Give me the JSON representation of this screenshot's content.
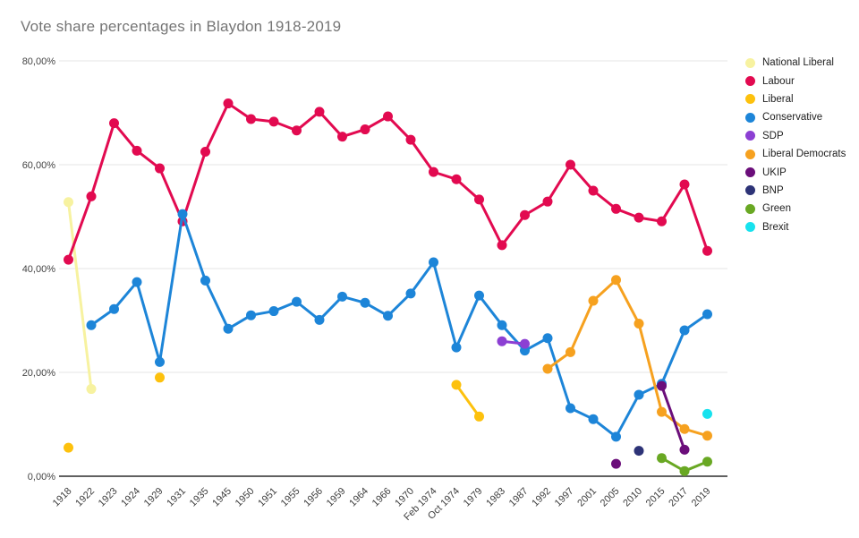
{
  "chart_data": {
    "type": "line",
    "title": "Vote share percentages in Blaydon 1918-2019",
    "legend_position": "right",
    "grid": true,
    "y_axis": {
      "range": [
        0,
        80
      ],
      "ticks": [
        {
          "value": 0,
          "label": "0,00%"
        },
        {
          "value": 20,
          "label": "20,00%"
        },
        {
          "value": 40,
          "label": "40,00%"
        },
        {
          "value": 60,
          "label": "60,00%"
        },
        {
          "value": 80,
          "label": "80,00%"
        }
      ]
    },
    "categories": [
      "1918",
      "1922",
      "1923",
      "1924",
      "1929",
      "1931",
      "1935",
      "1945",
      "1950",
      "1951",
      "1955",
      "1956",
      "1959",
      "1964",
      "1966",
      "1970",
      "Feb 1974",
      "Oct 1974",
      "1979",
      "1983",
      "1987",
      "1992",
      "1997",
      "2001",
      "2005",
      "2010",
      "2015",
      "2017",
      "2019"
    ],
    "series": [
      {
        "id": "national-liberal",
        "name": "National Liberal",
        "color": "#F7F2A0",
        "values": [
          52.8,
          16.8,
          null,
          null,
          null,
          null,
          null,
          null,
          null,
          null,
          null,
          null,
          null,
          null,
          null,
          null,
          null,
          null,
          null,
          null,
          null,
          null,
          null,
          null,
          null,
          null,
          null,
          null,
          null
        ]
      },
      {
        "id": "labour",
        "name": "Labour",
        "color": "#E20A50",
        "values": [
          41.7,
          53.9,
          68.0,
          62.7,
          59.3,
          49.1,
          62.5,
          71.8,
          68.8,
          68.3,
          66.6,
          70.2,
          65.4,
          66.8,
          69.3,
          64.8,
          58.6,
          57.2,
          53.3,
          44.5,
          50.3,
          52.9,
          60.0,
          55.0,
          51.5,
          49.8,
          49.1,
          56.2,
          43.4
        ]
      },
      {
        "id": "liberal",
        "name": "Liberal",
        "color": "#FDC10D",
        "values": [
          5.5,
          null,
          null,
          null,
          19.0,
          null,
          null,
          null,
          null,
          null,
          null,
          null,
          null,
          null,
          null,
          null,
          null,
          17.6,
          11.5,
          null,
          null,
          null,
          null,
          null,
          null,
          null,
          null,
          null,
          null
        ]
      },
      {
        "id": "conservative",
        "name": "Conservative",
        "color": "#1D85D8",
        "values": [
          null,
          29.1,
          32.2,
          37.4,
          22.0,
          50.5,
          37.7,
          28.4,
          31.0,
          31.8,
          33.6,
          30.1,
          34.6,
          33.4,
          30.9,
          35.2,
          41.2,
          24.8,
          34.8,
          29.1,
          24.2,
          26.6,
          13.1,
          11.0,
          7.6,
          15.7,
          17.8,
          28.1,
          31.2
        ]
      },
      {
        "id": "sdp",
        "name": "SDP",
        "color": "#8C3FD3",
        "values": [
          null,
          null,
          null,
          null,
          null,
          null,
          null,
          null,
          null,
          null,
          null,
          null,
          null,
          null,
          null,
          null,
          null,
          null,
          null,
          26.0,
          25.5,
          null,
          null,
          null,
          null,
          null,
          null,
          null,
          null
        ]
      },
      {
        "id": "liberal-democrats",
        "name": "Liberal Democrats",
        "color": "#F6A11F",
        "values": [
          null,
          null,
          null,
          null,
          null,
          null,
          null,
          null,
          null,
          null,
          null,
          null,
          null,
          null,
          null,
          null,
          null,
          null,
          null,
          null,
          null,
          20.7,
          23.9,
          33.8,
          37.8,
          29.4,
          12.4,
          9.1,
          7.8
        ]
      },
      {
        "id": "ukip",
        "name": "UKIP",
        "color": "#6B0E7A",
        "values": [
          null,
          null,
          null,
          null,
          null,
          null,
          null,
          null,
          null,
          null,
          null,
          null,
          null,
          null,
          null,
          null,
          null,
          null,
          null,
          null,
          null,
          null,
          null,
          null,
          2.4,
          null,
          17.4,
          5.1,
          null
        ]
      },
      {
        "id": "bnp",
        "name": "BNP",
        "color": "#2D3377",
        "values": [
          null,
          null,
          null,
          null,
          null,
          null,
          null,
          null,
          null,
          null,
          null,
          null,
          null,
          null,
          null,
          null,
          null,
          null,
          null,
          null,
          null,
          null,
          null,
          null,
          null,
          4.9,
          null,
          null,
          null
        ]
      },
      {
        "id": "green",
        "name": "Green",
        "color": "#69A823",
        "values": [
          null,
          null,
          null,
          null,
          null,
          null,
          null,
          null,
          null,
          null,
          null,
          null,
          null,
          null,
          null,
          null,
          null,
          null,
          null,
          null,
          null,
          null,
          null,
          null,
          null,
          null,
          3.5,
          1.0,
          2.8
        ]
      },
      {
        "id": "brexit",
        "name": "Brexit",
        "color": "#17E2EE",
        "values": [
          null,
          null,
          null,
          null,
          null,
          null,
          null,
          null,
          null,
          null,
          null,
          null,
          null,
          null,
          null,
          null,
          null,
          null,
          null,
          null,
          null,
          null,
          null,
          null,
          null,
          null,
          null,
          null,
          12.0
        ]
      }
    ]
  }
}
